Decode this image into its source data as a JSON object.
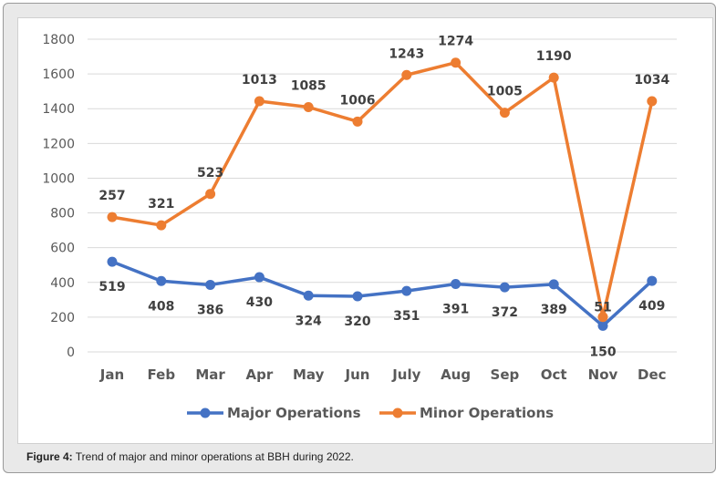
{
  "chart_data": {
    "type": "line",
    "title": "",
    "xlabel": "",
    "ylabel": "",
    "categories": [
      "Jan",
      "Feb",
      "Mar",
      "Apr",
      "May",
      "Jun",
      "July",
      "Aug",
      "Sep",
      "Oct",
      "Nov",
      "Dec"
    ],
    "ylim": [
      0,
      1800
    ],
    "yticks": [
      0,
      200,
      400,
      600,
      800,
      1000,
      1200,
      1400,
      1600,
      1800
    ],
    "grid": true,
    "legend_position": "bottom",
    "series": [
      {
        "name": "Major Operations",
        "color": "#4472C4",
        "values": [
          519,
          408,
          386,
          430,
          324,
          320,
          351,
          391,
          372,
          389,
          150,
          409
        ],
        "labels": [
          "519",
          "408",
          "386",
          "430",
          "324",
          "320",
          "351",
          "391",
          "372",
          "389",
          "150",
          "409"
        ]
      },
      {
        "name": "Minor Operations",
        "color": "#ED7D31",
        "values": [
          776,
          729,
          909,
          1443,
          1409,
          1326,
          1594,
          1665,
          1377,
          1579,
          201,
          1443
        ],
        "labels": [
          "257",
          "321",
          "523",
          "1013",
          "1085",
          "1006",
          "1243",
          "1274",
          "1005",
          "1190",
          "51",
          "1034"
        ]
      }
    ]
  },
  "caption": {
    "label": "Figure 4:",
    "text": " Trend of major and minor operations at BBH during 2022."
  }
}
